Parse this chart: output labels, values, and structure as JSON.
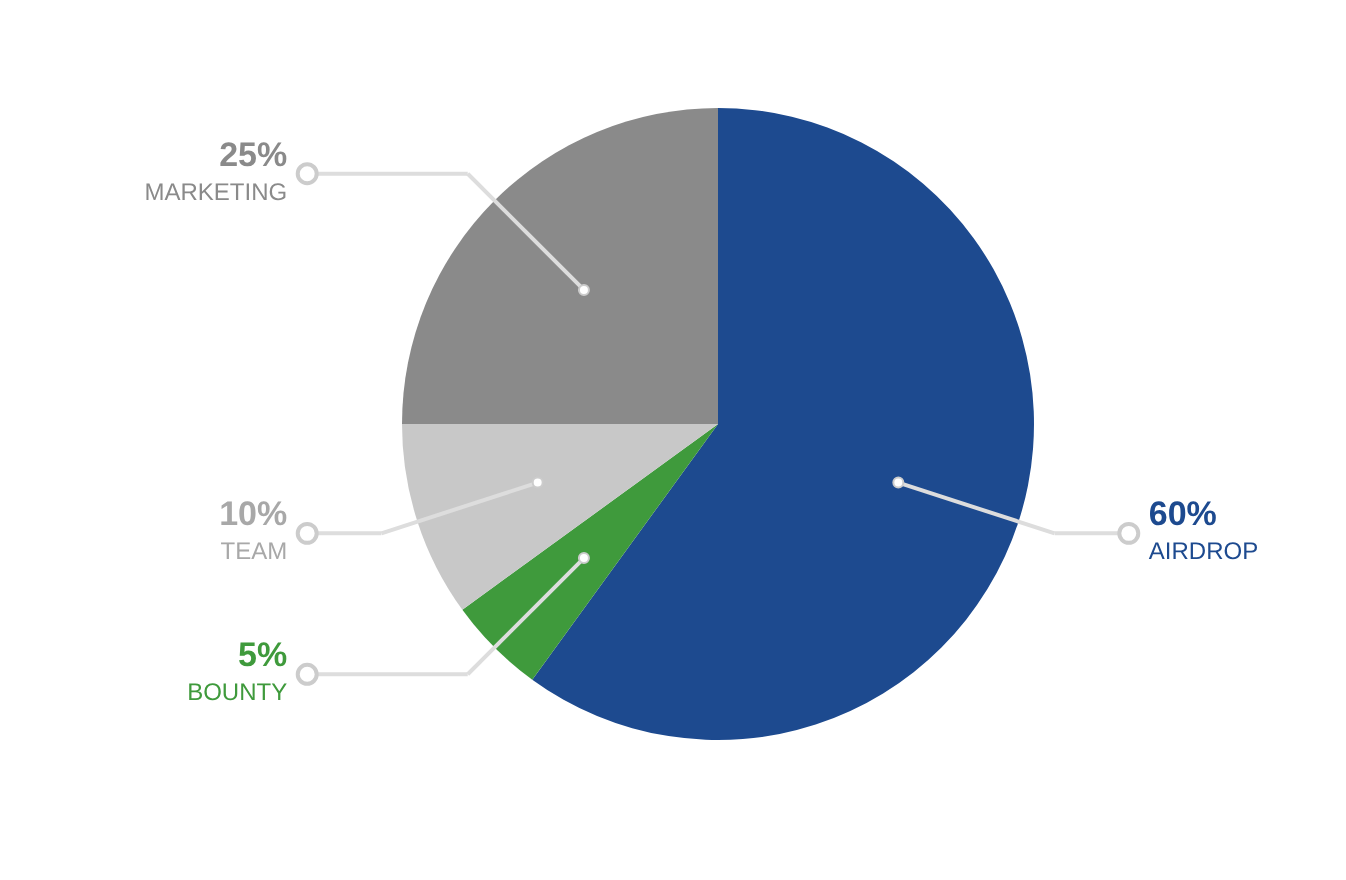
{
  "chart_data": {
    "type": "pie",
    "categories": [
      "AIRDROP",
      "BOUNTY",
      "TEAM",
      "MARKETING"
    ],
    "values": [
      60,
      5,
      10,
      25
    ],
    "value_labels": [
      "60%",
      "5%",
      "10%",
      "25%"
    ],
    "colors": [
      "#1d4a8f",
      "#3f9a3c",
      "#c8c8c8",
      "#8a8a8a"
    ]
  }
}
